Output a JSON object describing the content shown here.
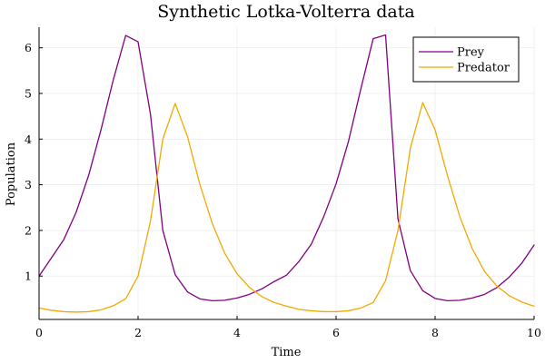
{
  "chart_data": {
    "type": "line",
    "title": "Synthetic Lotka-Volterra data",
    "xlabel": "Time",
    "ylabel": "Population",
    "xlim": [
      0,
      10
    ],
    "ylim": [
      0.05,
      6.45
    ],
    "xticks": [
      0,
      2,
      4,
      6,
      8,
      10
    ],
    "yticks": [
      1,
      2,
      3,
      4,
      5,
      6
    ],
    "grid": true,
    "legend_position": "top-right",
    "x": [
      0,
      0.25,
      0.5,
      0.75,
      1.0,
      1.25,
      1.5,
      1.75,
      2.0,
      2.25,
      2.5,
      2.75,
      3.0,
      3.25,
      3.5,
      3.75,
      4.0,
      4.25,
      4.5,
      4.75,
      5.0,
      5.25,
      5.5,
      5.75,
      6.0,
      6.25,
      6.5,
      6.75,
      7.0,
      7.25,
      7.5,
      7.75,
      8.0,
      8.25,
      8.5,
      8.75,
      9.0,
      9.25,
      9.5,
      9.75,
      10.0
    ],
    "series": [
      {
        "name": "Prey",
        "color": "#800080",
        "values": [
          1.0,
          1.4,
          1.8,
          2.4,
          3.2,
          4.2,
          5.3,
          6.27,
          6.13,
          4.55,
          2.0,
          1.03,
          0.65,
          0.5,
          0.46,
          0.47,
          0.52,
          0.6,
          0.72,
          0.88,
          1.02,
          1.32,
          1.7,
          2.3,
          3.02,
          3.95,
          5.1,
          6.2,
          6.28,
          2.25,
          1.12,
          0.68,
          0.51,
          0.46,
          0.47,
          0.52,
          0.6,
          0.75,
          0.98,
          1.28,
          1.68
        ]
      },
      {
        "name": "Predator",
        "color": "#f2a900",
        "values": [
          0.3,
          0.25,
          0.22,
          0.21,
          0.22,
          0.26,
          0.35,
          0.5,
          1.0,
          2.2,
          4.0,
          4.78,
          4.05,
          3.0,
          2.15,
          1.5,
          1.05,
          0.75,
          0.55,
          0.42,
          0.34,
          0.27,
          0.24,
          0.22,
          0.22,
          0.24,
          0.3,
          0.42,
          0.9,
          2.0,
          3.8,
          4.8,
          4.2,
          3.2,
          2.3,
          1.6,
          1.1,
          0.78,
          0.57,
          0.43,
          0.34
        ]
      }
    ]
  }
}
